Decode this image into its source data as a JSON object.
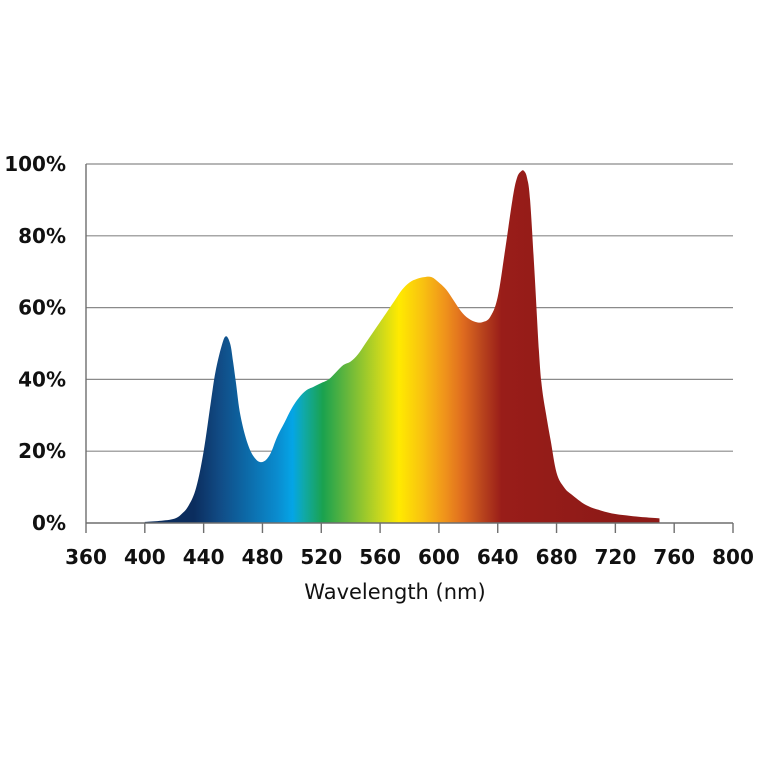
{
  "chart_data": {
    "type": "area",
    "title": "",
    "xlabel": "Wavelength (nm)",
    "ylabel": "",
    "xlim": [
      360,
      800
    ],
    "ylim": [
      0,
      100
    ],
    "x_ticks": [
      360,
      400,
      440,
      480,
      520,
      560,
      600,
      640,
      680,
      720,
      760,
      800
    ],
    "x_tick_labels": [
      "360",
      "400",
      "440",
      "480",
      "520",
      "560",
      "600",
      "640",
      "680",
      "720",
      "760",
      "800"
    ],
    "y_ticks": [
      0,
      20,
      40,
      60,
      80,
      100
    ],
    "y_tick_labels": [
      "0%",
      "20%",
      "40%",
      "60%",
      "80%",
      "100%"
    ],
    "grid": true,
    "fill": "visible spectrum color gradient",
    "series": [
      {
        "x": [
          400,
          410,
          420,
          425,
          430,
          435,
          440,
          445,
          448,
          452,
          455,
          458,
          460,
          462,
          465,
          470,
          475,
          480,
          485,
          490,
          495,
          500,
          505,
          510,
          515,
          520,
          525,
          530,
          535,
          540,
          545,
          550,
          555,
          560,
          565,
          570,
          575,
          580,
          585,
          590,
          595,
          600,
          605,
          610,
          615,
          620,
          625,
          630,
          635,
          640,
          645,
          650,
          653,
          656,
          658,
          660,
          662,
          665,
          668,
          670,
          673,
          676,
          680,
          685,
          690,
          700,
          710,
          720,
          730,
          740,
          750
        ],
        "y": [
          0.3,
          0.6,
          1.2,
          2.5,
          5,
          10,
          20,
          34,
          42,
          49,
          52,
          50,
          45,
          39,
          30,
          22,
          18,
          17,
          19,
          24,
          28,
          32,
          35,
          37,
          38,
          39,
          40,
          42,
          44,
          45,
          47,
          50,
          53,
          56,
          59,
          62,
          65,
          67,
          68,
          68.5,
          68.5,
          67,
          65,
          62,
          59,
          57,
          56,
          56,
          57.5,
          63,
          76,
          90,
          96,
          98,
          98,
          96,
          90,
          70,
          48,
          38,
          30,
          23,
          14,
          10,
          8,
          5,
          3.5,
          2.5,
          2,
          1.6,
          1.3
        ]
      }
    ]
  }
}
